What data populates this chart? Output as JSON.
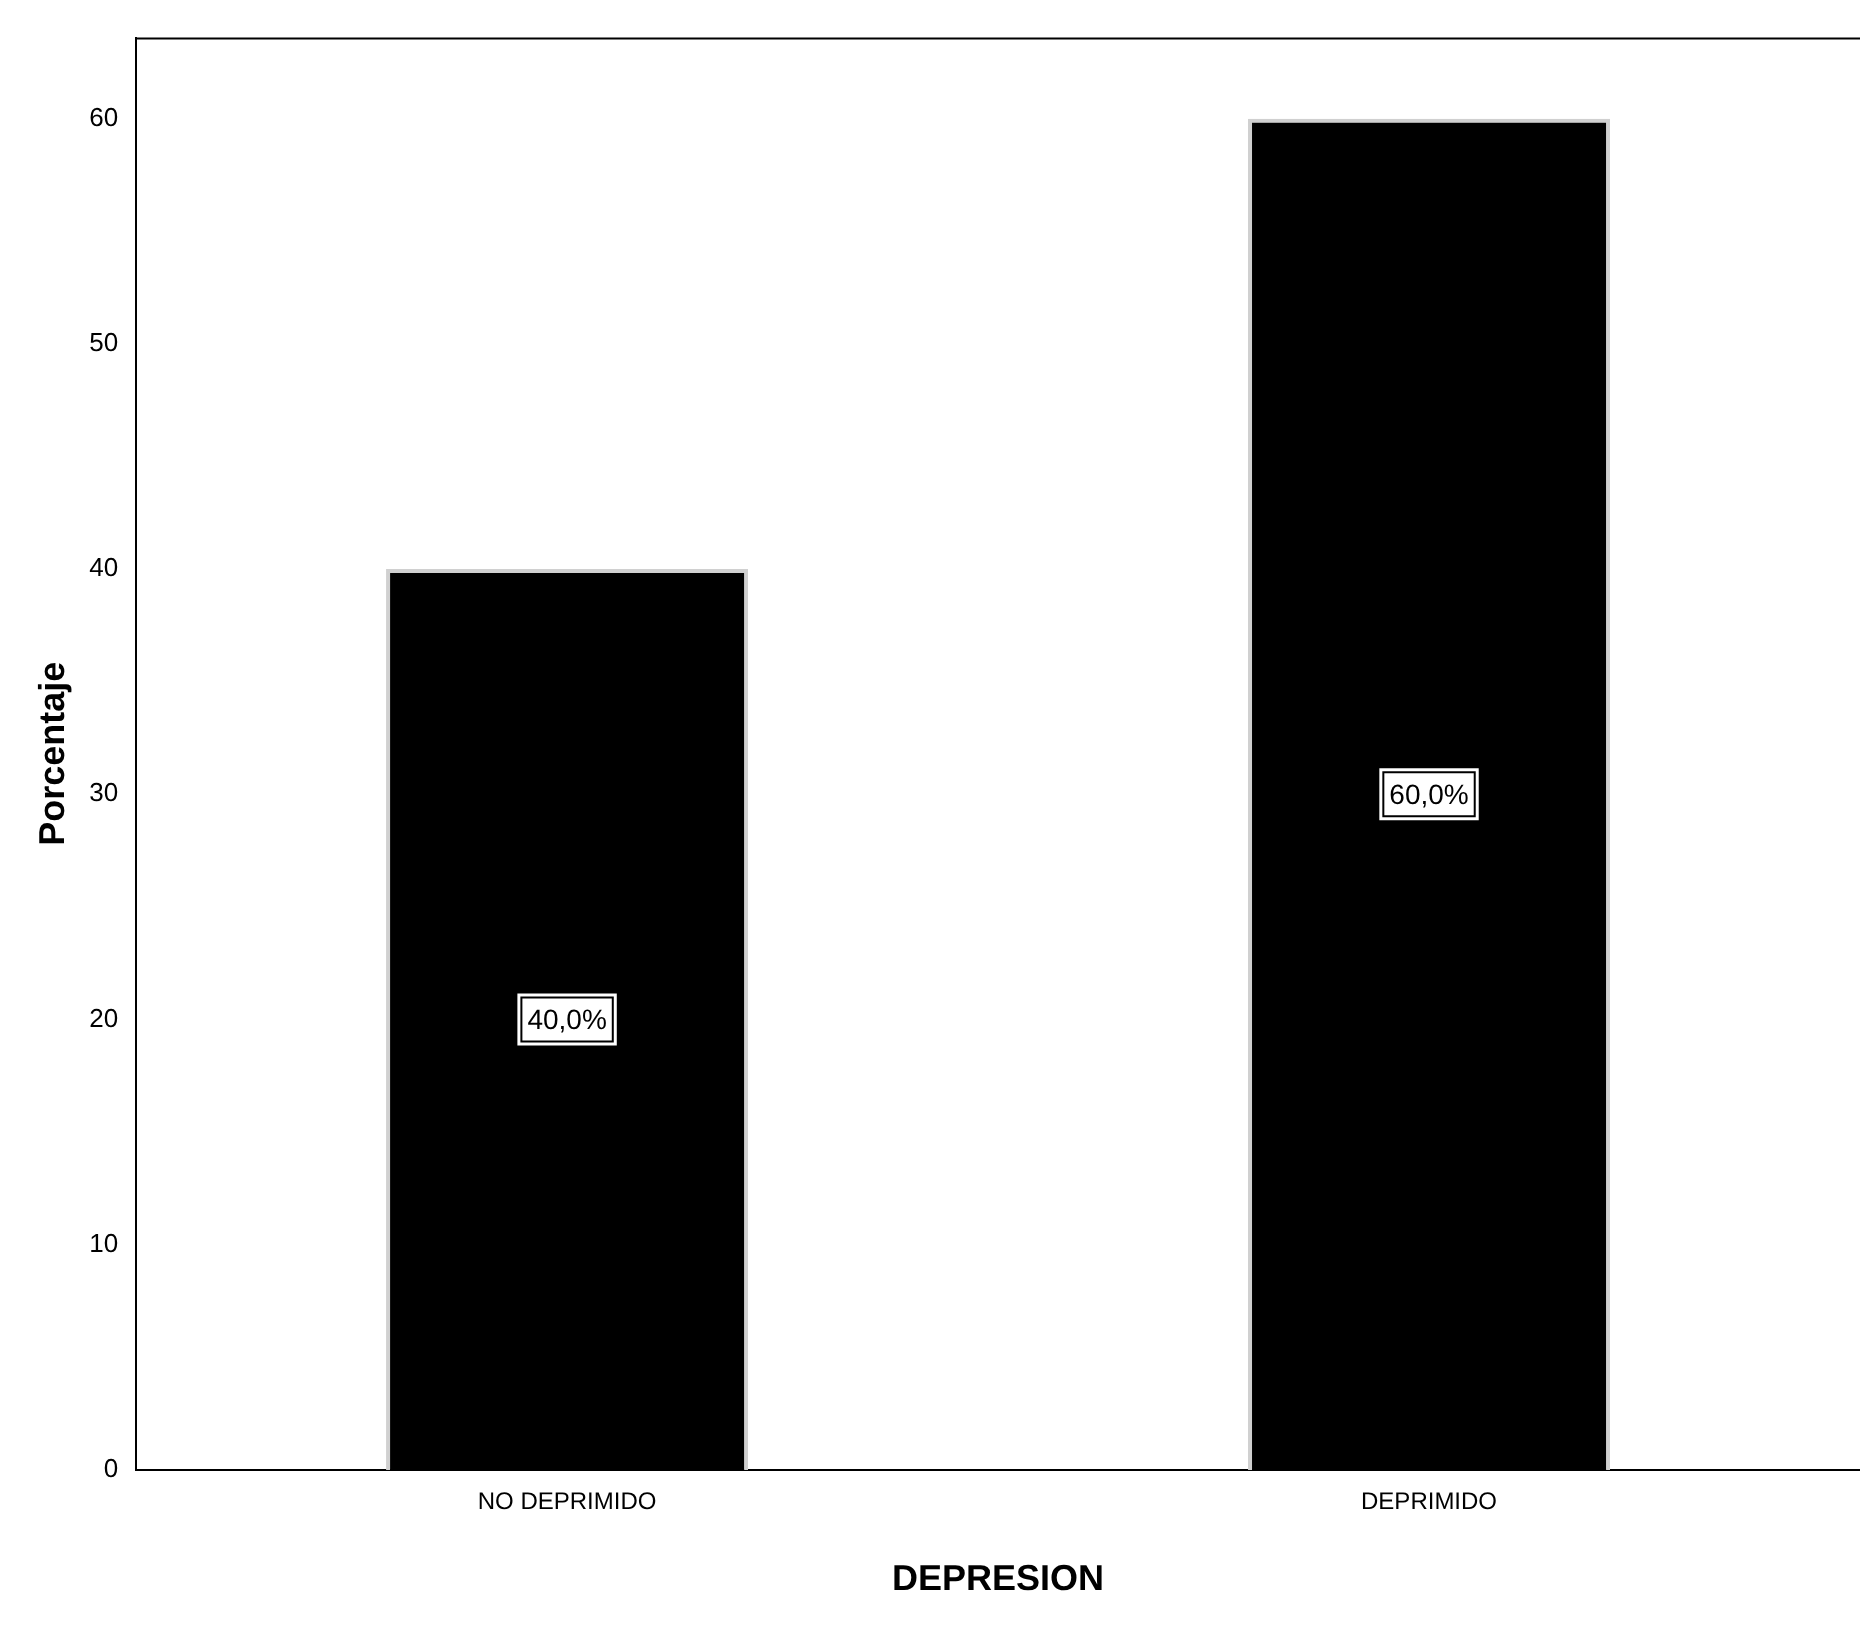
{
  "chart_data": {
    "type": "bar",
    "xlabel": "DEPRESION",
    "ylabel": "Porcentaje",
    "categories": [
      "NO DEPRIMIDO",
      "DEPRIMIDO"
    ],
    "values": [
      40,
      60
    ],
    "color": "#000000",
    "value_labels": [
      "40,0%",
      "60,0%"
    ],
    "ylim": [
      0,
      63.6
    ],
    "yticks": [
      0,
      10,
      20,
      30,
      40,
      50,
      60
    ],
    "grid": false,
    "legend": false
  }
}
